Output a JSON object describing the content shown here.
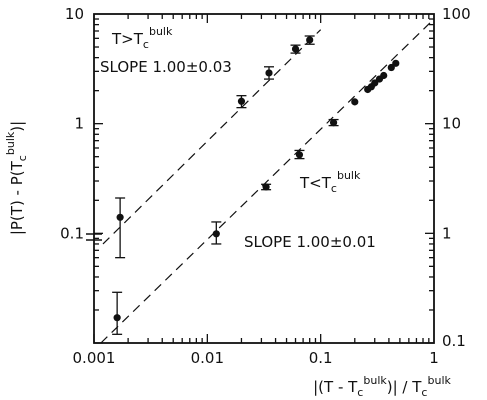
{
  "chart_data": {
    "type": "scatter",
    "title": "",
    "x_scale": "log",
    "y_scale_left": "log",
    "y_scale_right": "log",
    "xlim": [
      0.001,
      1
    ],
    "ylim_left": [
      0.01,
      10
    ],
    "ylim_right": [
      0.1,
      100
    ],
    "grid": false,
    "x_ticks": [
      {
        "value": 0.001,
        "label": "0.001"
      },
      {
        "value": 0.01,
        "label": "0.01"
      },
      {
        "value": 0.1,
        "label": "0.1"
      },
      {
        "value": 1,
        "label": "1"
      }
    ],
    "y_ticks_left": [
      {
        "value": 0.1,
        "label": "0.1"
      },
      {
        "value": 1,
        "label": "1"
      },
      {
        "value": 10,
        "label": "10"
      }
    ],
    "y_ticks_right": [
      {
        "value": 1,
        "label": "1"
      },
      {
        "value": 10,
        "label": "10"
      },
      {
        "value": 100,
        "label": "100"
      }
    ],
    "xlabel": {
      "pre": "|(T - T",
      "sub": "c",
      "sup": "bulk",
      "mid": ")| / T",
      "sub2": "c",
      "sup2": "bulk"
    },
    "ylabel": {
      "pre": "|P(T) - P(T",
      "sub": "c",
      "sup": "bulk",
      "post": ")|"
    },
    "annotations": {
      "upper_condition": {
        "pre": "T>T",
        "sub": "c",
        "sup": "bulk"
      },
      "upper_slope": "SLOPE 1.00±0.03",
      "lower_condition": {
        "pre": "T<T",
        "sub": "c",
        "sup": "bulk"
      },
      "lower_slope": "SLOPE 1.00±0.01"
    },
    "series": [
      {
        "axis": "left",
        "points": [
          {
            "x": 0.0017,
            "y": 0.14,
            "err_low": 0.06,
            "err_high": 0.21
          },
          {
            "x": 0.02,
            "y": 1.6,
            "err_low": 1.4,
            "err_high": 1.8
          },
          {
            "x": 0.035,
            "y": 2.9,
            "err_low": 2.55,
            "err_high": 3.3
          },
          {
            "x": 0.06,
            "y": 4.8,
            "err_low": 4.4,
            "err_high": 5.2
          },
          {
            "x": 0.08,
            "y": 5.8,
            "err_low": 5.3,
            "err_high": 6.3
          }
        ]
      },
      {
        "axis": "right",
        "points": [
          {
            "x": 0.0016,
            "y": 0.17,
            "err_low": 0.12,
            "err_high": 0.29
          },
          {
            "x": 0.012,
            "y": 0.99,
            "err_low": 0.8,
            "err_high": 1.27
          },
          {
            "x": 0.033,
            "y": 2.65,
            "err_low": 2.5,
            "err_high": 2.8
          },
          {
            "x": 0.065,
            "y": 5.2,
            "err_low": 4.8,
            "err_high": 5.7
          },
          {
            "x": 0.13,
            "y": 10.2,
            "err_low": 9.6,
            "err_high": 10.9
          },
          {
            "x": 0.2,
            "y": 15.8
          },
          {
            "x": 0.26,
            "y": 20.5
          },
          {
            "x": 0.28,
            "y": 21.7
          },
          {
            "x": 0.3,
            "y": 23.5
          },
          {
            "x": 0.33,
            "y": 25.5
          },
          {
            "x": 0.36,
            "y": 27.5
          },
          {
            "x": 0.42,
            "y": 32.5
          },
          {
            "x": 0.46,
            "y": 35.5
          }
        ]
      }
    ],
    "fit_lines": [
      {
        "axis": "left",
        "x": [
          0.0012,
          0.1
        ],
        "y": [
          0.08,
          7.2
        ],
        "style": "dashed"
      },
      {
        "axis": "right",
        "x": [
          0.00115,
          1
        ],
        "y": [
          0.1,
          90
        ],
        "style": "dashed"
      }
    ]
  }
}
